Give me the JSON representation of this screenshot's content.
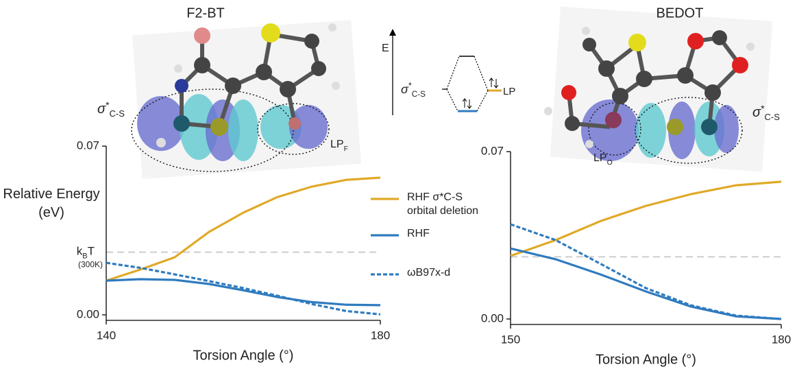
{
  "chart_data": [
    {
      "type": "line",
      "title": "F2-BT",
      "xlabel": "Torsion Angle (°)",
      "ylabel": "Relative Energy (eV)",
      "x": [
        140,
        145,
        150,
        155,
        160,
        165,
        170,
        175,
        180
      ],
      "xlim": [
        140,
        180
      ],
      "xticks": [
        140,
        180
      ],
      "ylim": [
        0,
        0.07
      ],
      "yticks": [
        {
          "value": 0,
          "label": "0.00"
        },
        0.07
      ],
      "reference_line": {
        "value": 0.026,
        "color": "#cccccc",
        "label": {
          "base": "k",
          "sub": "B",
          "rest": "T"
        },
        "note": "(300K)"
      },
      "annotations": [
        {
          "base": "σ",
          "sup": "*",
          "sub": "C-S"
        },
        {
          "base": "LP",
          "sub": "F"
        }
      ],
      "series": [
        {
          "name": "RHF σ*C-S orbital deletion",
          "color": "#e0a928",
          "linestyle": "solid",
          "values": [
            0.0142,
            0.0188,
            0.0239,
            0.0344,
            0.0424,
            0.0489,
            0.0532,
            0.056,
            0.0569
          ]
        },
        {
          "name": "RHF",
          "color": "#2f7bbf",
          "linestyle": "solid",
          "values": [
            0.0142,
            0.0148,
            0.0145,
            0.0128,
            0.0102,
            0.0074,
            0.0053,
            0.0042,
            0.004
          ]
        },
        {
          "name": "ωB97x-d",
          "color": "#2f7bbf",
          "linestyle": "dashed",
          "values": [
            0.0216,
            0.0195,
            0.0168,
            0.014,
            0.0111,
            0.0079,
            0.0045,
            0.0016,
            0.0002
          ]
        }
      ]
    },
    {
      "type": "line",
      "title": "BEDOT",
      "xlabel": "Torsion Angle (°)",
      "x": [
        150,
        155,
        160,
        165,
        170,
        175,
        180
      ],
      "xlim": [
        150,
        180
      ],
      "xticks": [
        150,
        180
      ],
      "ylim": [
        0,
        0.07
      ],
      "yticks": [
        {
          "value": 0,
          "label": "0.00"
        },
        0.07
      ],
      "reference_line": {
        "value": 0.026,
        "color": "#cccccc"
      },
      "annotations": [
        {
          "base": "LP",
          "sub": "O"
        },
        {
          "base": "σ",
          "sup": "*",
          "sub": "C-S"
        }
      ],
      "series": [
        {
          "color": "#e0a928",
          "linestyle": "solid",
          "values": [
            0.0264,
            0.033,
            0.041,
            0.0473,
            0.0522,
            0.0559,
            0.0574
          ]
        },
        {
          "color": "#2f7bbf",
          "linestyle": "solid",
          "values": [
            0.0295,
            0.025,
            0.0186,
            0.0115,
            0.0052,
            0.0011,
            0
          ]
        },
        {
          "color": "#2f7bbf",
          "linestyle": "dashed",
          "values": [
            0.0396,
            0.033,
            0.023,
            0.0129,
            0.0057,
            0.0014,
            0
          ]
        }
      ]
    }
  ],
  "orbital_diagram": {
    "axis_label": "E",
    "left_label": {
      "base": "σ",
      "sup": "*",
      "sub": "C-S"
    },
    "right_label": "LP"
  }
}
